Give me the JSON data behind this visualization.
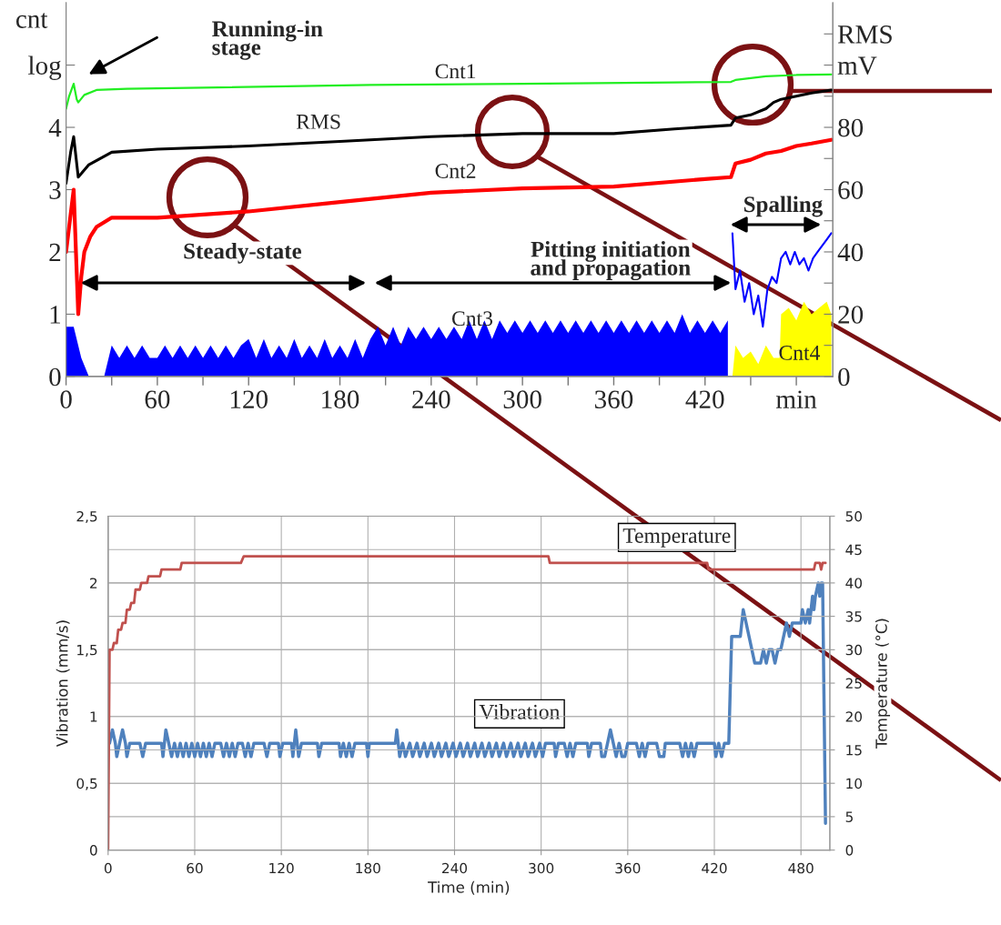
{
  "chart_data": [
    {
      "type": "line",
      "ylabel": "cnt",
      "xlim": [
        0,
        504
      ],
      "xticks": [
        0,
        {
          "value": 30,
          "label": null
        },
        60,
        {
          "value": 90,
          "label": null
        },
        120,
        {
          "value": 150,
          "label": null
        },
        180,
        {
          "value": 210,
          "label": null
        },
        240,
        {
          "value": 270,
          "label": null
        },
        300,
        {
          "value": 330,
          "label": null
        },
        360,
        {
          "value": 390,
          "label": null
        },
        420,
        {
          "value": 450,
          "label": null
        },
        {
          "value": 480,
          "label": "min"
        }
      ],
      "ylim": [
        0,
        6
      ],
      "yticks": [
        0,
        1,
        2,
        3,
        4,
        {
          "value": 5,
          "label": "log"
        }
      ],
      "y2lim": [
        0,
        120
      ],
      "y2ticks": [
        0,
        {
          "value": 10,
          "label": null
        },
        20,
        {
          "value": 30,
          "label": null
        },
        40,
        {
          "value": 50,
          "label": null
        },
        60,
        {
          "value": 70,
          "label": null
        },
        80,
        {
          "value": 90,
          "label": null
        },
        {
          "value": 100,
          "label": "mV"
        },
        {
          "value": 110,
          "label": "RMS"
        }
      ],
      "grid": false,
      "legend": false,
      "annotations": [
        "Running-in\nstage",
        "Steady-state",
        "Pitting initiation\nand propagation",
        "Spalling"
      ],
      "series": [
        {
          "name": "Cnt3",
          "type": "area",
          "color": "#0000ff",
          "x": [
            0,
            5,
            10,
            15,
            20,
            25,
            30,
            35,
            40,
            45,
            50,
            55,
            60,
            65,
            70,
            75,
            80,
            85,
            90,
            95,
            100,
            105,
            110,
            115,
            120,
            125,
            130,
            135,
            140,
            145,
            150,
            155,
            160,
            165,
            170,
            175,
            180,
            185,
            190,
            195,
            200,
            205,
            210,
            215,
            220,
            225,
            230,
            235,
            240,
            245,
            250,
            255,
            260,
            265,
            270,
            275,
            280,
            285,
            290,
            295,
            300,
            305,
            310,
            315,
            320,
            325,
            330,
            335,
            340,
            345,
            350,
            355,
            360,
            365,
            370,
            375,
            380,
            385,
            390,
            395,
            400,
            405,
            410,
            415,
            420,
            425,
            430,
            435
          ],
          "values": [
            0.8,
            0.8,
            0.3,
            0,
            0,
            0,
            0.5,
            0.3,
            0.5,
            0.3,
            0.5,
            0.3,
            0.3,
            0.5,
            0.3,
            0.5,
            0.3,
            0.5,
            0.3,
            0.5,
            0.3,
            0.5,
            0.3,
            0.5,
            0.6,
            0.3,
            0.6,
            0.3,
            0.5,
            0.3,
            0.6,
            0.3,
            0.5,
            0.3,
            0.6,
            0.3,
            0.5,
            0.3,
            0.6,
            0.3,
            0.6,
            0.8,
            0.5,
            0.8,
            0.5,
            0.8,
            0.6,
            0.8,
            0.6,
            0.8,
            0.6,
            0.8,
            0.6,
            0.9,
            0.6,
            0.9,
            0.6,
            0.9,
            0.7,
            0.9,
            0.7,
            0.9,
            0.7,
            0.9,
            0.7,
            0.9,
            0.7,
            0.9,
            0.7,
            0.9,
            0.7,
            0.9,
            0.7,
            0.9,
            0.7,
            0.9,
            0.7,
            0.9,
            0.7,
            0.9,
            0.7,
            1.0,
            0.7,
            0.9,
            0.7,
            0.9,
            0.7,
            0.9
          ]
        },
        {
          "name": "Cnt4",
          "type": "area",
          "color": "#ffff00",
          "x": [
            438,
            440,
            445,
            450,
            455,
            460,
            465,
            469,
            470,
            475,
            480,
            485,
            490,
            495,
            500,
            503
          ],
          "values": [
            0,
            0.5,
            0.3,
            0.4,
            0.2,
            0.5,
            0.3,
            0.3,
            1.0,
            1.1,
            0.9,
            1.2,
            1.0,
            1.1,
            1.2,
            1.0
          ]
        },
        {
          "type": "line",
          "color": "#0000ff",
          "x": [
            438,
            440,
            443,
            446,
            449,
            452,
            455,
            458,
            461,
            464,
            467,
            470,
            473,
            476,
            479,
            482,
            485,
            488,
            491,
            494,
            497,
            500,
            503
          ],
          "values": [
            2.3,
            1.4,
            1.7,
            1.2,
            1.5,
            1.0,
            1.3,
            0.8,
            1.4,
            1.6,
            1.5,
            1.9,
            2.0,
            1.8,
            2.0,
            1.8,
            1.9,
            1.7,
            1.9,
            2.0,
            2.1,
            2.2,
            2.3
          ]
        },
        {
          "name": "Cnt2",
          "type": "line",
          "color": "#ff0000",
          "x": [
            0,
            3,
            5,
            8,
            10,
            12,
            16,
            20,
            30,
            60,
            120,
            180,
            240,
            300,
            360,
            420,
            437,
            440,
            450,
            460,
            470,
            480,
            490,
            503
          ],
          "values": [
            2.0,
            2.6,
            3.0,
            1.0,
            1.6,
            2.0,
            2.25,
            2.4,
            2.55,
            2.55,
            2.65,
            2.8,
            2.95,
            3.02,
            3.05,
            3.17,
            3.2,
            3.42,
            3.48,
            3.58,
            3.62,
            3.7,
            3.74,
            3.8
          ]
        },
        {
          "name": "RMS",
          "type": "line",
          "axis": "y2",
          "color": "#000000",
          "x": [
            0,
            3,
            5,
            8,
            15,
            30,
            60,
            120,
            180,
            240,
            300,
            360,
            400,
            437,
            440,
            450,
            460,
            465,
            470,
            480,
            490,
            503
          ],
          "values": [
            62,
            72,
            77,
            64,
            68,
            72,
            73,
            74,
            75.5,
            77,
            78,
            78,
            79.5,
            80.7,
            83,
            84,
            86,
            88,
            89,
            90,
            91,
            92
          ]
        },
        {
          "name": "Cnt1",
          "type": "line",
          "color": "#22ee22",
          "x": [
            0,
            2,
            5,
            7,
            8,
            12,
            20,
            40,
            100,
            200,
            300,
            400,
            437,
            440,
            460,
            480,
            503
          ],
          "values": [
            4.3,
            4.5,
            4.7,
            4.45,
            4.4,
            4.52,
            4.6,
            4.62,
            4.64,
            4.68,
            4.7,
            4.72,
            4.73,
            4.76,
            4.82,
            4.84,
            4.85
          ]
        }
      ]
    },
    {
      "type": "line",
      "xlabel": "Time (min)",
      "ylabel": "Vibration (mm/s)",
      "y2label": "Temperature (°C)",
      "xlim": [
        0,
        500
      ],
      "xticks": [
        0,
        60,
        120,
        180,
        240,
        300,
        360,
        420,
        480
      ],
      "ylim": [
        0,
        2.5
      ],
      "yticks": [
        0,
        {
          "value": 0.5,
          "label": "0,5"
        },
        1,
        {
          "value": 1.5,
          "label": "1,5"
        },
        2,
        {
          "value": 2.5,
          "label": "2,5"
        }
      ],
      "y2lim": [
        0,
        50
      ],
      "y2ticks": [
        0,
        5,
        10,
        15,
        20,
        25,
        30,
        35,
        40,
        45,
        50
      ],
      "grid": true,
      "legend": false,
      "series": [
        {
          "name": "Temperature",
          "axis": "y2",
          "color": "#c0504d",
          "x": [
            0,
            1,
            3,
            4,
            6,
            7,
            9,
            10,
            12,
            13,
            15,
            16,
            18,
            19,
            22,
            23,
            27,
            28,
            36,
            37,
            50,
            51,
            92,
            94,
            305,
            306,
            415,
            416,
            489,
            490,
            493,
            494,
            495,
            497
          ],
          "values": [
            0,
            30,
            30,
            31,
            31,
            33,
            33,
            34,
            34,
            36,
            36,
            37,
            37,
            39,
            39,
            40,
            40,
            41,
            41,
            42,
            42,
            43,
            43,
            44,
            44,
            43,
            43,
            42,
            42,
            43,
            43,
            42,
            43,
            43
          ]
        },
        {
          "name": "Vibration",
          "color": "#4f81bd",
          "x": [
            1,
            3,
            5,
            6,
            8,
            10,
            12,
            13,
            15,
            22,
            24,
            26,
            37,
            38,
            40,
            42,
            44,
            46,
            48,
            50,
            52,
            54,
            56,
            58,
            60,
            62,
            64,
            66,
            68,
            70,
            72,
            74,
            78,
            80,
            82,
            84,
            86,
            88,
            90,
            93,
            95,
            97,
            99,
            101,
            108,
            110,
            112,
            118,
            119,
            121,
            127,
            128,
            130,
            132,
            134,
            145,
            146,
            148,
            160,
            161,
            163,
            165,
            167,
            169,
            171,
            179,
            180,
            181,
            199,
            200,
            202,
            204,
            206,
            209,
            211,
            214,
            216,
            219,
            221,
            224,
            226,
            229,
            231,
            234,
            236,
            239,
            241,
            244,
            246,
            249,
            251,
            254,
            256,
            259,
            261,
            264,
            266,
            269,
            271,
            274,
            276,
            279,
            281,
            284,
            286,
            289,
            291,
            294,
            296,
            299,
            301,
            303,
            309,
            310,
            312,
            316,
            318,
            320,
            322,
            324,
            332,
            333,
            335,
            341,
            342,
            344,
            346,
            348,
            350,
            352,
            354,
            356,
            358,
            360,
            366,
            368,
            370,
            372,
            374,
            380,
            382,
            385,
            386,
            396,
            398,
            400,
            402,
            404,
            406,
            408,
            420,
            421,
            423,
            425,
            427,
            430,
            432,
            438,
            440,
            442,
            444,
            446,
            448,
            452,
            454,
            456,
            458,
            460,
            462,
            464,
            466,
            468,
            470,
            472,
            474,
            480,
            481,
            483,
            485,
            486,
            487,
            488,
            489,
            490,
            492,
            493,
            494,
            495,
            497
          ],
          "values": [
            0.8,
            0.9,
            0.8,
            0.7,
            0.8,
            0.9,
            0.8,
            0.7,
            0.8,
            0.8,
            0.7,
            0.8,
            0.8,
            0.7,
            0.9,
            0.8,
            0.7,
            0.8,
            0.7,
            0.8,
            0.7,
            0.8,
            0.7,
            0.8,
            0.7,
            0.8,
            0.7,
            0.8,
            0.7,
            0.8,
            0.7,
            0.8,
            0.8,
            0.7,
            0.8,
            0.7,
            0.8,
            0.7,
            0.8,
            0.8,
            0.7,
            0.8,
            0.7,
            0.8,
            0.8,
            0.7,
            0.8,
            0.8,
            0.7,
            0.8,
            0.8,
            0.7,
            0.9,
            0.7,
            0.8,
            0.8,
            0.7,
            0.8,
            0.8,
            0.7,
            0.8,
            0.7,
            0.8,
            0.7,
            0.8,
            0.8,
            0.7,
            0.8,
            0.8,
            0.9,
            0.7,
            0.8,
            0.7,
            0.8,
            0.7,
            0.8,
            0.7,
            0.8,
            0.7,
            0.8,
            0.7,
            0.8,
            0.7,
            0.8,
            0.7,
            0.8,
            0.7,
            0.8,
            0.7,
            0.8,
            0.7,
            0.8,
            0.7,
            0.8,
            0.7,
            0.8,
            0.7,
            0.8,
            0.7,
            0.8,
            0.7,
            0.8,
            0.7,
            0.8,
            0.7,
            0.8,
            0.7,
            0.8,
            0.7,
            0.8,
            0.7,
            0.8,
            0.8,
            0.7,
            0.8,
            0.8,
            0.7,
            0.8,
            0.7,
            0.8,
            0.8,
            0.7,
            0.8,
            0.8,
            0.7,
            0.7,
            0.8,
            0.9,
            0.8,
            0.7,
            0.8,
            0.7,
            0.7,
            0.8,
            0.8,
            0.7,
            0.8,
            0.7,
            0.8,
            0.8,
            0.7,
            0.7,
            0.8,
            0.8,
            0.7,
            0.8,
            0.7,
            0.8,
            0.7,
            0.8,
            0.8,
            0.7,
            0.8,
            0.7,
            0.8,
            0.8,
            1.6,
            1.6,
            1.8,
            1.7,
            1.6,
            1.5,
            1.4,
            1.4,
            1.5,
            1.4,
            1.5,
            1.5,
            1.4,
            1.5,
            1.5,
            1.6,
            1.7,
            1.6,
            1.7,
            1.7,
            1.8,
            1.7,
            1.8,
            1.7,
            1.8,
            1.9,
            1.8,
            1.9,
            2.0,
            1.9,
            2.0,
            2.0,
            0.2
          ]
        }
      ]
    }
  ]
}
